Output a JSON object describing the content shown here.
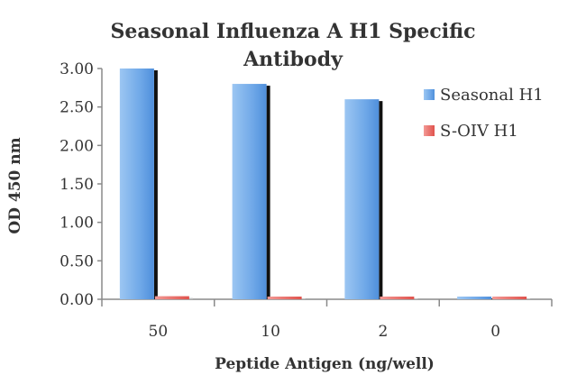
{
  "chart_data": {
    "type": "bar",
    "title": [
      "Seasonal Influenza A H1 Specific",
      "Antibody"
    ],
    "xlabel": "Peptide Antigen (ng/well)",
    "ylabel": "OD 450 nm",
    "categories": [
      "50",
      "10",
      "2",
      "0"
    ],
    "series": [
      {
        "name": "Seasonal H1",
        "values": [
          3.0,
          2.8,
          2.6,
          0.03
        ]
      },
      {
        "name": "S-OIV H1",
        "values": [
          0.04,
          0.03,
          0.03,
          0.03
        ]
      }
    ],
    "ylim": [
      0,
      3.0
    ],
    "yticks": [
      "0.00",
      "0.50",
      "1.00",
      "1.50",
      "2.00",
      "2.50",
      "3.00"
    ],
    "grid": false,
    "legend_position": "right",
    "colors": {
      "Seasonal H1": "#6fa8e8",
      "S-OIV H1": "#e85a55"
    }
  }
}
